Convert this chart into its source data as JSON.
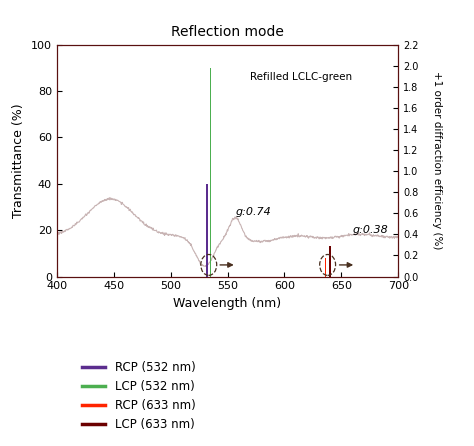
{
  "title": "Reflection mode",
  "xlabel": "Wavelength (nm)",
  "ylabel_left": "Transmittance (%)",
  "ylabel_right": "+1 order diffraction efficiency (%)",
  "annotation_text": "Refilled LCLC-green",
  "xlim": [
    400,
    700
  ],
  "ylim_left": [
    0,
    100
  ],
  "ylim_right": [
    0,
    2.2
  ],
  "yticks_left": [
    0,
    20,
    40,
    60,
    80,
    100
  ],
  "yticks_right": [
    0.0,
    0.2,
    0.4,
    0.6,
    0.8,
    1.0,
    1.2,
    1.4,
    1.6,
    1.8,
    2.0,
    2.2
  ],
  "xticks": [
    400,
    450,
    500,
    550,
    600,
    650,
    700
  ],
  "bar_RCP_532_x": 532,
  "bar_LCP_532_x": 535,
  "bar_RCP_633_x": 636,
  "bar_LCP_633_x": 640,
  "bar_RCP_532_height": 40,
  "bar_LCP_532_height": 90,
  "bar_RCP_633_height": 8,
  "bar_LCP_633_height": 13,
  "bar_RCP_532_color": "#5B2D8E",
  "bar_LCP_532_color": "#4CAF50",
  "bar_RCP_633_color": "#FF2400",
  "bar_LCP_633_color": "#6B0000",
  "bar_width": 1.5,
  "transmittance_color": "#C8B4B4",
  "g074_label": "g:0.74",
  "g038_label": "g:0.38",
  "legend_labels": [
    "RCP (532 nm)",
    "LCP (532 nm)",
    "RCP (633 nm)",
    "LCP (633 nm)"
  ],
  "legend_colors": [
    "#5B2D8E",
    "#4CAF50",
    "#FF2400",
    "#6B0000"
  ],
  "background_color": "#ffffff",
  "arrow_color": "#4A3020",
  "plot_bg_color": "#f5f0f0"
}
